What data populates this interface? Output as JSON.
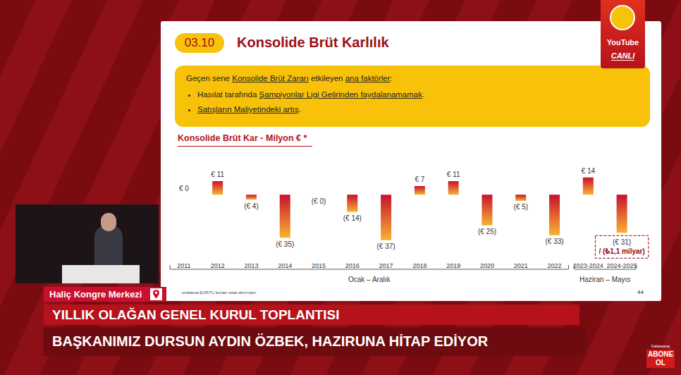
{
  "slide": {
    "section": "03.10",
    "title": "Konsolide Brüt Karlılık",
    "box_heading": [
      {
        "text": "Geçen sene "
      },
      {
        "text": "Konsolide Brüt Zararı",
        "underline": true
      },
      {
        "text": " etkileyen "
      },
      {
        "text": "ana faktörler",
        "underline": true
      },
      {
        "text": ":"
      }
    ],
    "bullets": [
      [
        {
          "text": "Hasılat tarafında "
        },
        {
          "text": "Şampiyonlar Ligi Gelirinden faydalanamamak",
          "underline": true
        },
        {
          "text": "."
        }
      ],
      [
        {
          "text": "Satışların Maliyetindeki artış",
          "underline": true
        },
        {
          "text": "."
        }
      ]
    ],
    "footnote": "ortalama EUR/TL kurları esas alınmıştır.",
    "page": "44"
  },
  "chart_data": {
    "type": "bar",
    "title": "Konsolide Brüt Kar - Milyon € *",
    "categories": [
      "2011",
      "2012",
      "2013",
      "2014",
      "2015",
      "2016",
      "2017",
      "2018",
      "2019",
      "2020",
      "2021",
      "2022",
      "2023-2024",
      "2024-2025"
    ],
    "values": [
      0,
      11,
      -4,
      -35,
      0,
      -14,
      -37,
      7,
      11,
      -25,
      -5,
      -33,
      14,
      -31
    ],
    "value_labels": [
      "€ 0",
      "€ 11",
      "(€ 4)",
      "(€ 35)",
      "(€ 0)",
      "(€ 14)",
      "(€ 37)",
      "€ 7",
      "€ 11",
      "(€ 25)",
      "(€ 5)",
      "(€ 33)",
      "€ 14",
      "(€ 31)"
    ],
    "color": "#c8102e",
    "ylim": [
      -40,
      15
    ],
    "grid": false,
    "data_labels": true,
    "tick_labels": "x",
    "annotations": [
      {
        "category": "2024-2025",
        "text": "/ (₺1,1 milyar)"
      }
    ],
    "category_groups": [
      {
        "label": "Ocak – Aralık",
        "from": "2011",
        "to": "2022"
      },
      {
        "label": "Haziran – Mayıs",
        "from": "2023-2024",
        "to": "2024-2025"
      }
    ]
  },
  "broadcast": {
    "badge": "YouTube",
    "live": "CANLI",
    "location": "Haliç Kongre Merkezi",
    "headline": "YILLIK OLAĞAN GENEL KURUL TOPLANTISI",
    "subline": "BAŞKANIMIZ DURSUN AYDIN ÖZBEK, HAZIRUNA HİTAP EDİYOR",
    "channel": "Galatasaray",
    "subscribe": "ABONE OL"
  }
}
